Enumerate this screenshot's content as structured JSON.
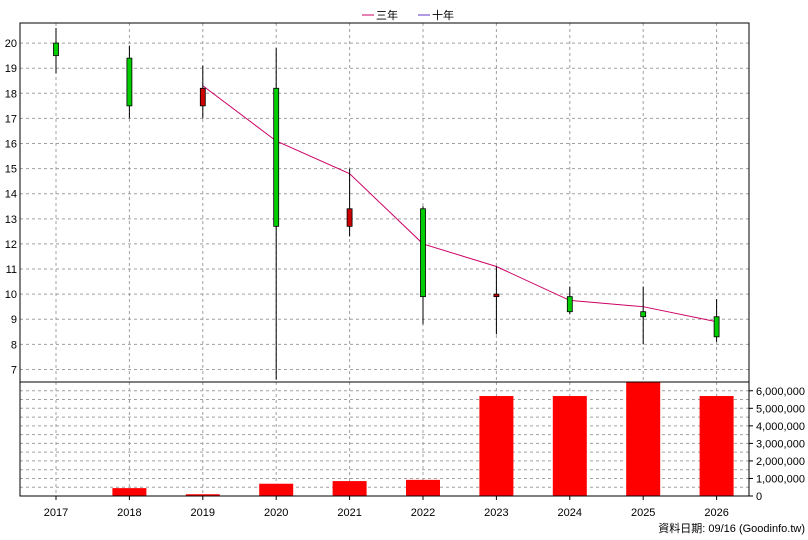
{
  "legend": [
    {
      "label": "三年",
      "color": "#cc0066"
    },
    {
      "label": "十年",
      "color": "#6633cc"
    }
  ],
  "footer": "資料日期: 09/16  (Goodinfo.tw)",
  "chart_data": [
    {
      "type": "candlestick",
      "categories": [
        "2017",
        "2018",
        "2019",
        "2020",
        "2021",
        "2022",
        "2023",
        "2024",
        "2025",
        "2026"
      ],
      "ohlc": [
        {
          "open": 19.5,
          "high": 20.6,
          "low": 18.8,
          "close": 20.0
        },
        {
          "open": 17.5,
          "high": 19.9,
          "low": 17.0,
          "close": 19.4
        },
        {
          "open": 18.2,
          "high": 19.1,
          "low": 17.0,
          "close": 17.5
        },
        {
          "open": 12.7,
          "high": 19.8,
          "low": 6.6,
          "close": 18.2
        },
        {
          "open": 13.4,
          "high": 15.0,
          "low": 12.3,
          "close": 12.7
        },
        {
          "open": 9.9,
          "high": 13.5,
          "low": 8.8,
          "close": 13.4
        },
        {
          "open": 10.0,
          "high": 11.1,
          "low": 8.4,
          "close": 9.9
        },
        {
          "open": 9.3,
          "high": 10.3,
          "low": 9.2,
          "close": 9.9
        },
        {
          "open": 9.1,
          "high": 10.3,
          "low": 8.0,
          "close": 9.3
        },
        {
          "open": 8.3,
          "high": 9.8,
          "low": 8.1,
          "close": 9.1
        }
      ],
      "candle_colors": {
        "up": "#00cc00",
        "down": "#cc0000"
      },
      "series": [
        {
          "name": "三年",
          "color": "#cc0066",
          "values": [
            null,
            null,
            18.3,
            16.1,
            14.8,
            12.0,
            11.1,
            9.75,
            9.5,
            8.9
          ]
        },
        {
          "name": "十年",
          "color": "#6633cc",
          "values": [
            null,
            null,
            null,
            null,
            null,
            null,
            null,
            null,
            null,
            null
          ]
        }
      ],
      "yticks": [
        7,
        8,
        9,
        10,
        11,
        12,
        13,
        14,
        15,
        16,
        17,
        18,
        19,
        20
      ],
      "ylim": [
        6.5,
        20.8
      ],
      "grid": true,
      "legend_position": "top-center"
    },
    {
      "type": "bar",
      "categories": [
        "2017",
        "2018",
        "2019",
        "2020",
        "2021",
        "2022",
        "2023",
        "2024",
        "2025",
        "2026"
      ],
      "values": [
        0,
        450000,
        100000,
        700000,
        850000,
        920000,
        5700000,
        5700000,
        6500000,
        5700000
      ],
      "color": "#ff0000",
      "ytick_labels": [
        "0",
        "1,000,000",
        "2,000,000",
        "3,000,000",
        "4,000,000",
        "5,000,000",
        "6,000,000"
      ],
      "yticks": [
        0,
        1000000,
        2000000,
        3000000,
        4000000,
        5000000,
        6000000
      ],
      "ylim": [
        0,
        6500000
      ],
      "grid": true
    }
  ]
}
